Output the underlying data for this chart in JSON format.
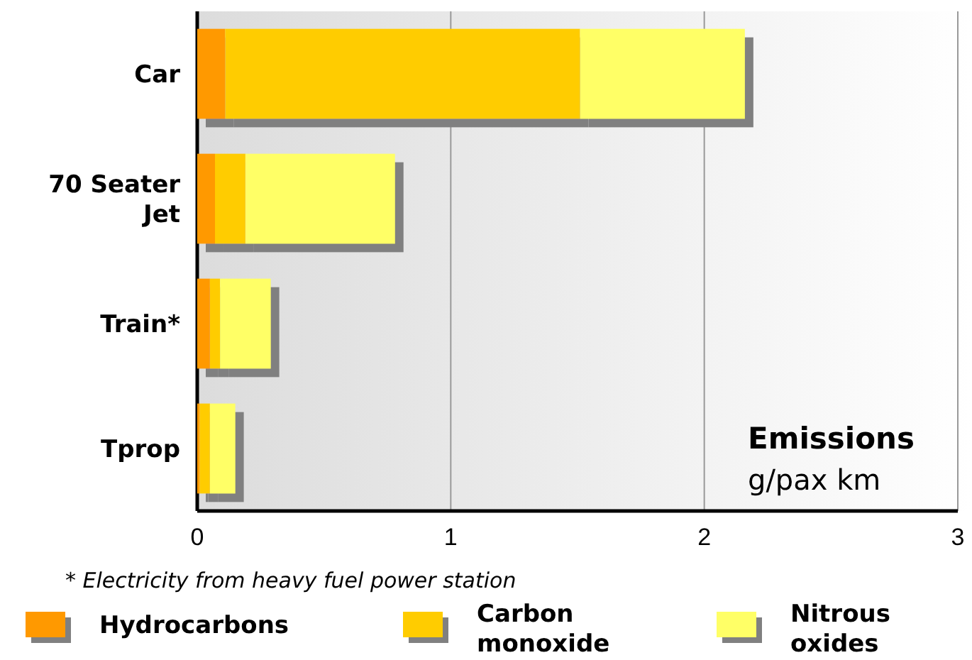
{
  "chart_data": {
    "type": "bar",
    "orientation": "horizontal",
    "stacked": true,
    "title": "Emissions",
    "subtitle": "g/pax km",
    "categories": [
      "Car",
      "70 Seater Jet",
      "Train*",
      "Tprop"
    ],
    "series": [
      {
        "name": "Hydrocarbons",
        "color": "#ff9900",
        "values": [
          0.11,
          0.07,
          0.05,
          0.01
        ]
      },
      {
        "name": "Carbon monoxide",
        "color": "#ffcc00",
        "values": [
          1.4,
          0.12,
          0.04,
          0.04
        ]
      },
      {
        "name": "Nitrous oxides",
        "color": "#ffff66",
        "values": [
          0.65,
          0.59,
          0.2,
          0.1
        ]
      }
    ],
    "xlim": [
      0,
      3
    ],
    "xticks": [
      0,
      1,
      2,
      3
    ],
    "grid": "x",
    "legend": "bottom",
    "annotations": [
      "* Electricity from heavy fuel power station"
    ]
  }
}
